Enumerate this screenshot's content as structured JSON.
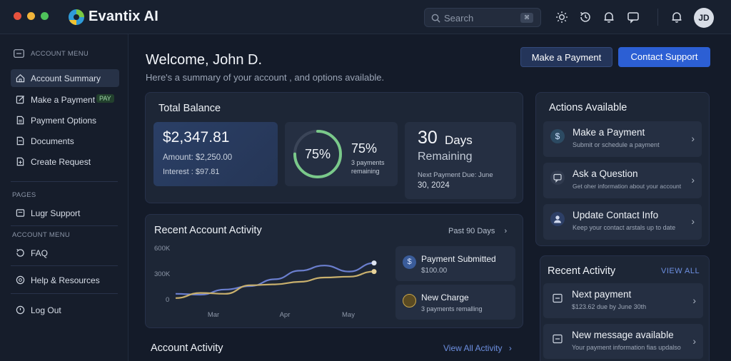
{
  "brand": {
    "name": "Evantix AI"
  },
  "topbar": {
    "search_placeholder": "Search",
    "kbd": "⌘",
    "icons": [
      "sun-icon",
      "history-icon",
      "bell-icon",
      "chat-icon",
      "notification-icon"
    ],
    "avatar_initials": "JD"
  },
  "sidebar": {
    "section_account": "ACCOUNT MENU",
    "items": [
      {
        "label": "Account Summary"
      },
      {
        "label": "Make a Payment",
        "badge": "PAY"
      },
      {
        "label": "Payment Options"
      },
      {
        "label": "Documents"
      },
      {
        "label": "Create Request"
      }
    ],
    "section_pages": "PAGES",
    "pages_item": "Lugr Support",
    "section_account2": "ACCOUNT MENU",
    "faq": "FAQ",
    "help": "Help & Resources",
    "logout": "Log Out"
  },
  "header": {
    "welcome": "Welcome, John D.",
    "subtitle": "Here's a summary of your account , and options available.",
    "make_payment": "Make a Payment",
    "contact_support": "Contact Support"
  },
  "balance": {
    "title": "Total Balance",
    "amount": "$2,347.81",
    "amount_line": "Amount: $2,250.00",
    "interest_line": "Interest : $97.81",
    "progress_percent": 75,
    "ring_label": "75%",
    "progress_label": "75%",
    "progress_sub1": "3 payments",
    "progress_sub2": "remaining",
    "days_value": "30",
    "days_unit": "Days",
    "days_remaining": "Remaining",
    "next_due1": "Next Payment Due: June",
    "next_due2": "30, 2024"
  },
  "recent_activity_chart": {
    "title": "Recent Account Activity",
    "range": "Past 90 Days",
    "events": [
      {
        "title": "Payment Submitted",
        "sub": "$100.00"
      },
      {
        "title": "New Charge",
        "sub": "3 payments remalling"
      }
    ]
  },
  "chart_data": {
    "type": "line",
    "categories": [
      "Mar",
      "Apr",
      "May"
    ],
    "y_ticks": [
      "600K",
      "300K",
      "0"
    ],
    "ylim": [
      0,
      600000
    ],
    "series": [
      {
        "color": "#6b7fcf",
        "x": [
          0,
          0.5,
          1,
          1.5,
          2,
          2.5,
          3,
          3.5,
          4
        ],
        "y": [
          60000,
          50000,
          110000,
          150000,
          230000,
          330000,
          390000,
          320000,
          420000
        ]
      },
      {
        "color": "#c9b06d",
        "x": [
          0,
          0.5,
          1,
          1.5,
          2,
          2.5,
          3,
          3.5,
          4
        ],
        "y": [
          10000,
          70000,
          60000,
          160000,
          170000,
          200000,
          250000,
          260000,
          320000
        ]
      }
    ]
  },
  "actions": {
    "title": "Actions Available",
    "items": [
      {
        "title": "Make a Payment",
        "sub": "Submit or schedule a payment"
      },
      {
        "title": "Ask a Question",
        "sub": "Get oher information about your account"
      },
      {
        "title": "Update Contact Info",
        "sub": "Keep your contact arstals up to date"
      }
    ]
  },
  "recent_activity": {
    "title": "Recent Activity",
    "view_all": "VIEW ALL",
    "items": [
      {
        "title": "Next payment",
        "sub": "$123.62 due by June 30th"
      },
      {
        "title": "New message available",
        "sub": "Your payment information fias updalso"
      }
    ]
  },
  "account_activity": {
    "title": "Account Activity",
    "view_all": "View All Activity"
  }
}
